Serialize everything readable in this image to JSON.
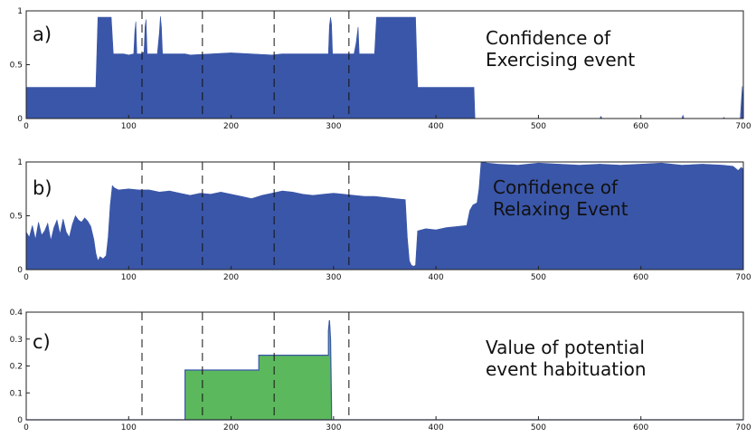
{
  "chart_data": [
    {
      "type": "area",
      "label": "a)",
      "title_lines": [
        "Confidence of",
        "Exercising event"
      ],
      "title_color": "#111111",
      "fill_color": "#3a56a8",
      "xlim": [
        0,
        700
      ],
      "ylim": [
        0,
        1
      ],
      "xticks": [
        0,
        100,
        200,
        300,
        400,
        500,
        600,
        700
      ],
      "yticks": [
        0,
        0.5,
        1
      ],
      "ytick_labels": [
        "0",
        "0.5",
        "1"
      ],
      "marker_lines_x": [
        113,
        172,
        242,
        315
      ],
      "series": [
        {
          "x": [
            0,
            68,
            70,
            75,
            83,
            85,
            95,
            100,
            105,
            106,
            107,
            108,
            113,
            115,
            116,
            117,
            118,
            119,
            121,
            128,
            130,
            131,
            132,
            133,
            134,
            135,
            155,
            160,
            200,
            240,
            250,
            270,
            290,
            295,
            296,
            297,
            298,
            299,
            300,
            305,
            310,
            315,
            320,
            322,
            324,
            325,
            326,
            327,
            330,
            340,
            342,
            344,
            380,
            382,
            437,
            438,
            500,
            550,
            560,
            561,
            562,
            570,
            600,
            640,
            641,
            642,
            650,
            680,
            681,
            682,
            690,
            697,
            698,
            699,
            700
          ],
          "y": [
            0.29,
            0.29,
            0.94,
            0.94,
            0.94,
            0.6,
            0.6,
            0.59,
            0.6,
            0.81,
            0.9,
            0.6,
            0.6,
            0.62,
            0.85,
            0.92,
            0.6,
            0.6,
            0.6,
            0.6,
            0.8,
            0.95,
            0.85,
            0.6,
            0.6,
            0.6,
            0.6,
            0.59,
            0.61,
            0.59,
            0.6,
            0.6,
            0.6,
            0.6,
            0.86,
            0.94,
            0.88,
            0.6,
            0.6,
            0.6,
            0.6,
            0.6,
            0.6,
            0.7,
            0.85,
            0.6,
            0.6,
            0.6,
            0.6,
            0.6,
            0.94,
            0.94,
            0.94,
            0.29,
            0.29,
            0.0,
            0.0,
            0.0,
            0.0,
            0.02,
            0.0,
            0.0,
            0.0,
            0.0,
            0.03,
            0.0,
            0.0,
            0.0,
            0.01,
            0.0,
            0.0,
            0.0,
            0.15,
            0.3,
            0.0
          ]
        }
      ]
    },
    {
      "type": "area",
      "label": "b)",
      "title_lines": [
        "Confidence of",
        "Relaxing Event"
      ],
      "title_color": "#ffffff",
      "fill_color": "#3a56a8",
      "xlim": [
        0,
        700
      ],
      "ylim": [
        0,
        1
      ],
      "xticks": [
        0,
        100,
        200,
        300,
        400,
        500,
        600,
        700
      ],
      "yticks": [
        0,
        0.5,
        1
      ],
      "ytick_labels": [
        "0",
        "0.5",
        "1"
      ],
      "marker_lines_x": [
        113,
        172,
        242,
        315
      ],
      "series": [
        {
          "x": [
            0,
            3,
            6,
            9,
            12,
            15,
            18,
            21,
            24,
            27,
            30,
            33,
            36,
            39,
            42,
            45,
            48,
            51,
            54,
            57,
            60,
            63,
            66,
            68,
            70,
            72,
            75,
            78,
            80,
            82,
            84,
            86,
            90,
            100,
            110,
            120,
            130,
            140,
            150,
            160,
            170,
            180,
            190,
            200,
            210,
            220,
            230,
            240,
            250,
            260,
            270,
            280,
            290,
            300,
            310,
            320,
            330,
            340,
            350,
            360,
            370,
            372,
            374,
            376,
            378,
            380,
            382,
            390,
            400,
            410,
            420,
            430,
            433,
            436,
            440,
            442,
            444,
            450,
            460,
            480,
            500,
            520,
            540,
            560,
            580,
            600,
            620,
            640,
            660,
            680,
            690,
            695,
            698,
            700
          ],
          "y": [
            0.35,
            0.3,
            0.41,
            0.28,
            0.44,
            0.32,
            0.36,
            0.43,
            0.27,
            0.39,
            0.46,
            0.33,
            0.47,
            0.35,
            0.3,
            0.42,
            0.5,
            0.46,
            0.44,
            0.48,
            0.45,
            0.4,
            0.28,
            0.15,
            0.08,
            0.12,
            0.1,
            0.13,
            0.3,
            0.6,
            0.78,
            0.76,
            0.74,
            0.75,
            0.74,
            0.74,
            0.72,
            0.73,
            0.71,
            0.69,
            0.71,
            0.7,
            0.72,
            0.7,
            0.68,
            0.66,
            0.69,
            0.71,
            0.73,
            0.72,
            0.7,
            0.69,
            0.7,
            0.71,
            0.7,
            0.69,
            0.68,
            0.68,
            0.67,
            0.66,
            0.65,
            0.3,
            0.08,
            0.04,
            0.03,
            0.04,
            0.36,
            0.38,
            0.37,
            0.39,
            0.4,
            0.41,
            0.55,
            0.6,
            0.62,
            0.75,
            1.0,
            0.99,
            0.98,
            0.97,
            0.99,
            0.98,
            0.97,
            0.98,
            0.97,
            0.98,
            0.99,
            0.97,
            0.98,
            0.97,
            0.96,
            0.92,
            0.95,
            0.93
          ]
        }
      ]
    },
    {
      "type": "area",
      "label": "c)",
      "title_lines": [
        "Value of potential",
        "event habituation"
      ],
      "title_color": "#111111",
      "fill_color": "#5cb85c",
      "line_color": "#3a56a8",
      "xlim": [
        0,
        700
      ],
      "ylim": [
        0,
        0.4
      ],
      "xticks": [
        0,
        100,
        200,
        300,
        400,
        500,
        600,
        700
      ],
      "yticks": [
        0,
        0.1,
        0.2,
        0.3,
        0.4
      ],
      "ytick_labels": [
        "0",
        "0.1",
        "0.2",
        "0.3",
        "0.4"
      ],
      "marker_lines_x": [
        113,
        172,
        242,
        315
      ],
      "series": [
        {
          "x": [
            0,
            155,
            155,
            227,
            227,
            295,
            295,
            296,
            297,
            298,
            298,
            700
          ],
          "y": [
            0,
            0,
            0.185,
            0.185,
            0.24,
            0.24,
            0.33,
            0.37,
            0.3,
            0.05,
            0,
            0
          ]
        }
      ]
    }
  ]
}
